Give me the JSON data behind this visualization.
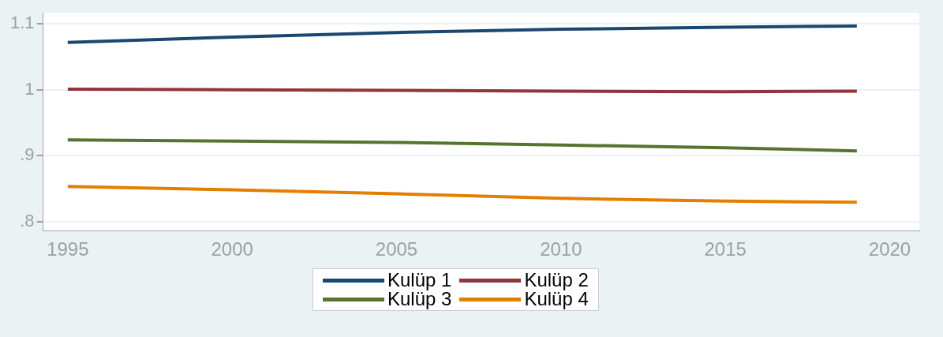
{
  "chart_data": {
    "type": "line",
    "x": [
      1995,
      2000,
      2005,
      2010,
      2015,
      2019
    ],
    "series": [
      {
        "name": "Kulüp 1",
        "color": "#1a476f",
        "values": [
          1.072,
          1.08,
          1.087,
          1.092,
          1.095,
          1.097
        ]
      },
      {
        "name": "Kulüp 2",
        "color": "#90353b",
        "values": [
          1.001,
          1.0,
          0.999,
          0.998,
          0.997,
          0.998
        ]
      },
      {
        "name": "Kulüp 3",
        "color": "#55752f",
        "values": [
          0.924,
          0.922,
          0.92,
          0.916,
          0.912,
          0.907
        ]
      },
      {
        "name": "Kulüp 4",
        "color": "#e37e00",
        "values": [
          0.853,
          0.848,
          0.842,
          0.835,
          0.831,
          0.829
        ]
      }
    ],
    "xlim": [
      1994.25,
      2020.9
    ],
    "xticks": [
      1995,
      2000,
      2005,
      2010,
      2015,
      2020
    ],
    "ylim": [
      0.786,
      1.117
    ],
    "yticks": [
      {
        "value": 0.8,
        "label": ".8"
      },
      {
        "value": 0.9,
        "label": ".9"
      },
      1,
      1.1
    ],
    "grid": "y",
    "legend": "bottom",
    "marker": "none",
    "line_style": "solid"
  }
}
